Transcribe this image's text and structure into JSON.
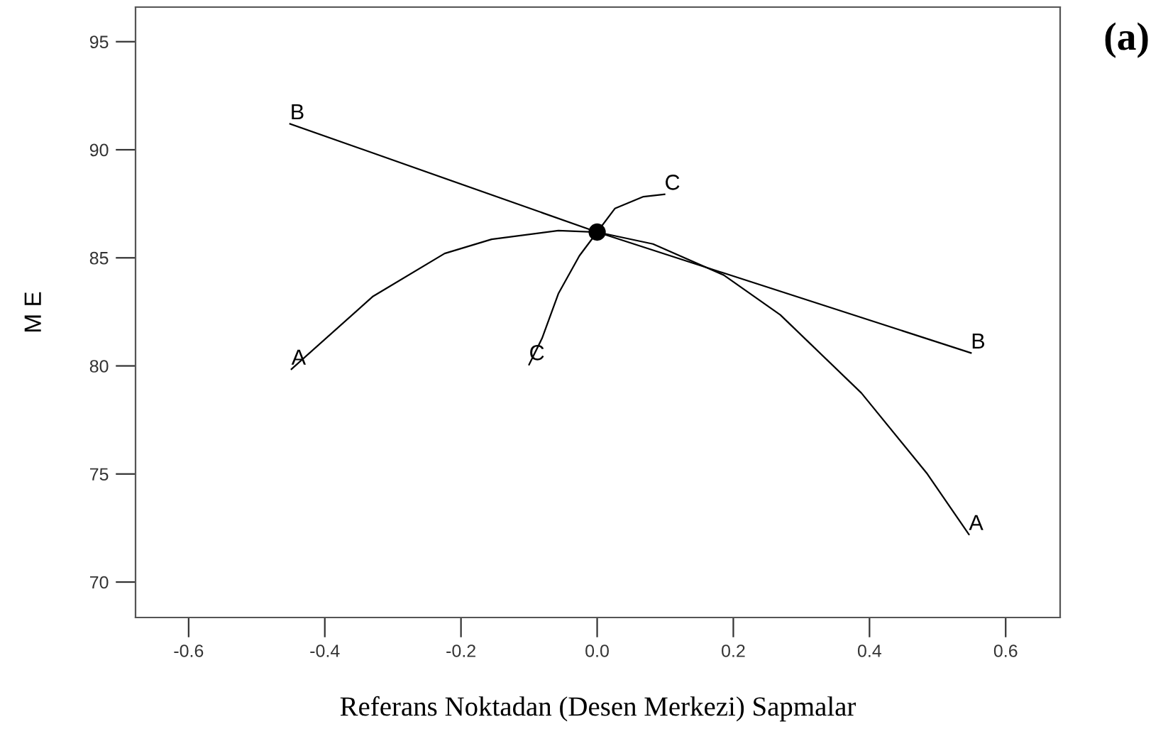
{
  "chart_data": {
    "type": "line",
    "xlabel": "Referans Noktadan (Desen Merkezi) Sapmalar",
    "ylabel": "M E",
    "annotations": [
      "(a)"
    ],
    "xlim": [
      -0.678,
      0.68
    ],
    "ylim": [
      68.36,
      96.6
    ],
    "xticks": [
      {
        "value": -0.6,
        "label": "-0.6"
      },
      {
        "value": -0.4,
        "label": "-0.4"
      },
      {
        "value": -0.2,
        "label": "-0.2"
      },
      {
        "value": 0,
        "label": "0.0"
      },
      {
        "value": 0.2,
        "label": "0.2"
      },
      {
        "value": 0.4,
        "label": "0.4"
      },
      {
        "value": 0.6,
        "label": "0.6"
      }
    ],
    "yticks": [
      70,
      75,
      80,
      85,
      90,
      95
    ],
    "grid": false,
    "legend": false,
    "marker": "none",
    "series": [
      {
        "name": "A",
        "color": "#000000",
        "x": [
          -0.449,
          -0.33,
          -0.224,
          -0.155,
          -0.057,
          0,
          0.082,
          0.186,
          0.269,
          0.388,
          0.485,
          0.546
        ],
        "values": [
          79.85,
          83.2,
          85.2,
          85.86,
          86.26,
          86.19,
          85.64,
          84.2,
          82.36,
          78.75,
          75.0,
          72.2
        ]
      },
      {
        "name": "B",
        "color": "#000000",
        "x": [
          -0.451,
          0,
          0.549
        ],
        "values": [
          91.2,
          86.19,
          80.6
        ]
      },
      {
        "name": "C",
        "color": "#000000",
        "x": [
          -0.1,
          -0.081,
          -0.057,
          -0.026,
          0,
          0.026,
          0.068,
          0.099
        ],
        "values": [
          80.06,
          81.27,
          83.34,
          85.1,
          86.19,
          87.28,
          87.83,
          87.94
        ]
      },
      {
        "type": "scatter",
        "color": "#000000",
        "marker": "circle",
        "x": [
          0
        ],
        "values": [
          86.19
        ]
      }
    ]
  }
}
